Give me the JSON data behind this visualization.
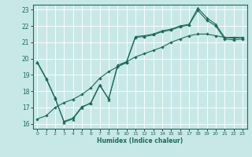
{
  "title": "",
  "xlabel": "Humidex (Indice chaleur)",
  "bg_color": "#c8e8e8",
  "line_color": "#1a6b5a",
  "grid_color": "#ffffff",
  "xlim": [
    -0.5,
    23.5
  ],
  "ylim": [
    15.7,
    23.3
  ],
  "yticks": [
    16,
    17,
    18,
    19,
    20,
    21,
    22,
    23
  ],
  "xticks": [
    0,
    1,
    2,
    3,
    4,
    5,
    6,
    7,
    8,
    9,
    10,
    11,
    12,
    13,
    14,
    15,
    16,
    17,
    18,
    19,
    20,
    21,
    22,
    23
  ],
  "line1_x": [
    0,
    1,
    2,
    3,
    4,
    5,
    6,
    7,
    8,
    9,
    10,
    11,
    12,
    13,
    14,
    15,
    16,
    17,
    18,
    19,
    20,
    21,
    22,
    23
  ],
  "line1_y": [
    19.8,
    18.8,
    17.6,
    16.1,
    16.3,
    17.0,
    17.3,
    18.4,
    17.5,
    19.6,
    19.8,
    21.35,
    21.4,
    21.5,
    21.7,
    21.8,
    22.0,
    22.1,
    23.1,
    22.5,
    22.1,
    21.3,
    21.25,
    21.3
  ],
  "line2_x": [
    0,
    1,
    2,
    3,
    4,
    5,
    6,
    7,
    8,
    9,
    10,
    11,
    12,
    13,
    14,
    15,
    16,
    17,
    18,
    19,
    20,
    21,
    22,
    23
  ],
  "line2_y": [
    19.75,
    18.75,
    17.55,
    16.15,
    16.35,
    17.05,
    17.25,
    18.35,
    17.55,
    19.5,
    19.75,
    21.3,
    21.35,
    21.45,
    21.65,
    21.75,
    21.95,
    22.05,
    22.95,
    22.35,
    22.0,
    21.2,
    21.15,
    21.2
  ],
  "line3_x": [
    0,
    1,
    2,
    3,
    4,
    5,
    6,
    7,
    8,
    9,
    10,
    11,
    12,
    13,
    14,
    15,
    16,
    17,
    18,
    19,
    20,
    21,
    22,
    23
  ],
  "line3_y": [
    16.3,
    16.5,
    17.0,
    17.3,
    17.5,
    17.8,
    18.2,
    18.8,
    19.2,
    19.5,
    19.8,
    20.1,
    20.3,
    20.5,
    20.7,
    21.0,
    21.2,
    21.4,
    21.5,
    21.5,
    21.4,
    21.3,
    21.3,
    21.3
  ]
}
